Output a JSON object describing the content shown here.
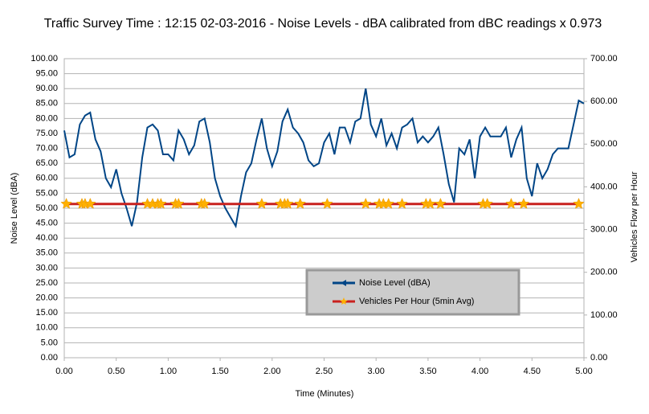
{
  "chart_data": {
    "type": "line",
    "title": "Traffic Survey Time : 12:15 02-03-2016 - Noise Levels - dBA calibrated from dBC readings x 0.973",
    "x_label": "Time (Minutes)",
    "y_label": "Noise Level (dBA)",
    "y2_label": "Vehicles Flow per Hour",
    "xlim": [
      0,
      5
    ],
    "ylim": [
      0,
      100
    ],
    "y2lim": [
      0,
      700
    ],
    "xticks": [
      {
        "value": 0,
        "label": "0.00"
      },
      {
        "value": 0.5,
        "label": "0.50"
      },
      {
        "value": 1,
        "label": "1.00"
      },
      {
        "value": 1.5,
        "label": "1.50"
      },
      {
        "value": 2,
        "label": "2.00"
      },
      {
        "value": 2.5,
        "label": "2.50"
      },
      {
        "value": 3,
        "label": "3.00"
      },
      {
        "value": 3.5,
        "label": "3.50"
      },
      {
        "value": 4,
        "label": "4.00"
      },
      {
        "value": 4.5,
        "label": "4.50"
      },
      {
        "value": 5,
        "label": "5.00"
      }
    ],
    "yticks": [
      {
        "value": 0,
        "label": "0.00"
      },
      {
        "value": 5,
        "label": "5.00"
      },
      {
        "value": 10,
        "label": "10.00"
      },
      {
        "value": 15,
        "label": "15.00"
      },
      {
        "value": 20,
        "label": "20.00"
      },
      {
        "value": 25,
        "label": "25.00"
      },
      {
        "value": 30,
        "label": "30.00"
      },
      {
        "value": 35,
        "label": "35.00"
      },
      {
        "value": 40,
        "label": "40.00"
      },
      {
        "value": 45,
        "label": "45.00"
      },
      {
        "value": 50,
        "label": "50.00"
      },
      {
        "value": 55,
        "label": "55.00"
      },
      {
        "value": 60,
        "label": "60.00"
      },
      {
        "value": 65,
        "label": "65.00"
      },
      {
        "value": 70,
        "label": "70.00"
      },
      {
        "value": 75,
        "label": "75.00"
      },
      {
        "value": 80,
        "label": "80.00"
      },
      {
        "value": 85,
        "label": "85.00"
      },
      {
        "value": 90,
        "label": "90.00"
      },
      {
        "value": 95,
        "label": "95.00"
      },
      {
        "value": 100,
        "label": "100.00"
      }
    ],
    "y2ticks": [
      {
        "value": 0,
        "label": "0.00"
      },
      {
        "value": 100,
        "label": "100.00"
      },
      {
        "value": 200,
        "label": "200.00"
      },
      {
        "value": 300,
        "label": "300.00"
      },
      {
        "value": 400,
        "label": "400.00"
      },
      {
        "value": 500,
        "label": "500.00"
      },
      {
        "value": 600,
        "label": "600.00"
      },
      {
        "value": 700,
        "label": "700.00"
      }
    ],
    "grid": true,
    "series": [
      {
        "name": "Noise Level (dBA)",
        "color": "#004586",
        "x": [
          0,
          0.05,
          0.1,
          0.15,
          0.2,
          0.25,
          0.3,
          0.35,
          0.4,
          0.45,
          0.5,
          0.55,
          0.6,
          0.65,
          0.7,
          0.75,
          0.8,
          0.85,
          0.9,
          0.95,
          1,
          1.05,
          1.1,
          1.15,
          1.2,
          1.25,
          1.3,
          1.35,
          1.4,
          1.45,
          1.5,
          1.55,
          1.6,
          1.65,
          1.7,
          1.75,
          1.8,
          1.85,
          1.9,
          1.95,
          2,
          2.05,
          2.1,
          2.15,
          2.2,
          2.25,
          2.3,
          2.35,
          2.4,
          2.45,
          2.5,
          2.55,
          2.6,
          2.65,
          2.7,
          2.75,
          2.8,
          2.85,
          2.9,
          2.95,
          3,
          3.05,
          3.1,
          3.15,
          3.2,
          3.25,
          3.3,
          3.35,
          3.4,
          3.45,
          3.5,
          3.55,
          3.6,
          3.65,
          3.7,
          3.75,
          3.8,
          3.85,
          3.9,
          3.95,
          4,
          4.05,
          4.1,
          4.15,
          4.2,
          4.25,
          4.3,
          4.35,
          4.4,
          4.45,
          4.5,
          4.55,
          4.6,
          4.65,
          4.7,
          4.75,
          4.8,
          4.85,
          4.9,
          4.95,
          5
        ],
        "values": [
          76,
          67,
          68,
          78,
          81,
          82,
          73,
          69,
          60,
          57,
          63,
          55,
          50,
          44,
          52,
          67,
          77,
          78,
          76,
          68,
          68,
          66,
          76,
          73,
          68,
          71,
          79,
          80,
          72,
          60,
          54,
          50,
          47,
          44,
          54,
          62,
          65,
          73,
          80,
          70,
          64,
          69,
          79,
          83,
          77,
          75,
          72,
          66,
          64,
          65,
          72,
          75,
          68,
          77,
          77,
          72,
          79,
          80,
          90,
          78,
          74,
          80,
          71,
          75,
          70,
          77,
          78,
          80,
          72,
          74,
          72,
          74,
          77,
          68,
          58,
          52,
          70,
          68,
          73,
          60,
          74,
          77,
          74,
          74,
          74,
          77,
          67,
          73,
          77,
          60,
          54,
          65,
          60,
          63,
          68,
          70,
          70,
          70,
          78,
          86,
          85
        ]
      },
      {
        "name": "Vehicles Per Hour (5min Avg)",
        "color": "#c9211e",
        "marker_color": "#ffb000",
        "axis": "y2",
        "x": [
          0.02,
          0.17,
          0.2,
          0.25,
          0.8,
          0.85,
          0.9,
          0.93,
          1.07,
          1.1,
          1.32,
          1.35,
          1.9,
          2.08,
          2.12,
          2.15,
          2.27,
          2.53,
          2.9,
          3.03,
          3.07,
          3.12,
          3.25,
          3.48,
          3.52,
          3.62,
          4.03,
          4.07,
          4.3,
          4.42,
          4.95
        ],
        "values": [
          360,
          360,
          360,
          360,
          360,
          360,
          360,
          360,
          360,
          360,
          360,
          360,
          360,
          360,
          360,
          360,
          360,
          360,
          360,
          360,
          360,
          360,
          360,
          360,
          360,
          360,
          360,
          360,
          360,
          360,
          360
        ]
      }
    ]
  }
}
